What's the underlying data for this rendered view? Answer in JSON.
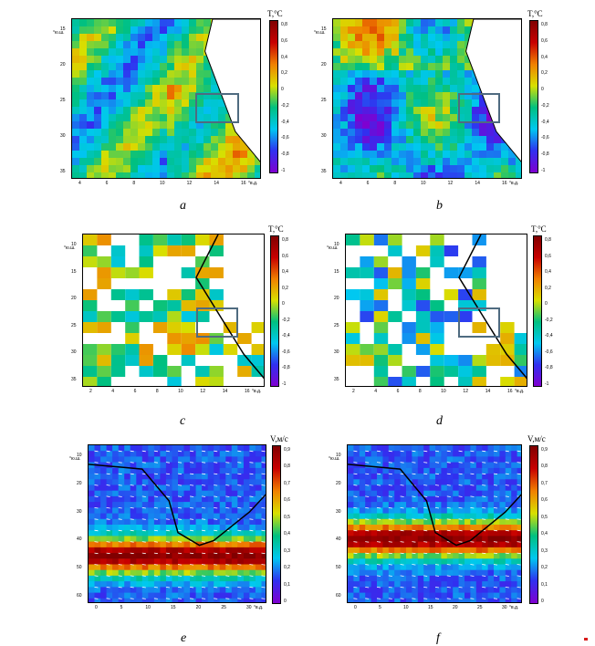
{
  "colors": {
    "scale_T": [
      "#8000d0",
      "#3030f0",
      "#00c8f0",
      "#00c080",
      "#d8e000",
      "#f08000",
      "#c80000",
      "#800000"
    ],
    "scale_V": [
      "#8000d0",
      "#3030f0",
      "#00c8f0",
      "#00c080",
      "#d8e000",
      "#f08000",
      "#c80000",
      "#800000"
    ],
    "box": "#4f6b80",
    "coast": "#000000"
  },
  "chart_data": [
    {
      "id": "a",
      "type": "heatmap",
      "label": "a",
      "colorbar_title": "T,°C",
      "colorbar_ticks": [
        "0,8",
        "0,6",
        "0,4",
        "0,2",
        "0",
        "-0,2",
        "-0,4",
        "-0,6",
        "-0,8",
        "-1"
      ],
      "colorbar_range": [
        -1,
        1
      ],
      "ylabel_unit": "°ю.ш.",
      "xlabel_unit": "°в.д.",
      "yticks": [
        "15",
        "20",
        "25",
        "30",
        "35"
      ],
      "xticks": [
        "4",
        "6",
        "8",
        "10",
        "12",
        "14",
        "16"
      ],
      "xlim": [
        2,
        18
      ],
      "ylim": [
        12,
        37
      ]
    },
    {
      "id": "b",
      "type": "heatmap",
      "label": "b",
      "colorbar_title": "T,°C",
      "colorbar_ticks": [
        "0,8",
        "0,6",
        "0,4",
        "0,2",
        "0",
        "-0,2",
        "-0,4",
        "-0,6",
        "-0,8",
        "-1"
      ],
      "colorbar_range": [
        -1,
        1
      ],
      "ylabel_unit": "°ю.ш.",
      "xlabel_unit": "°в.д.",
      "yticks": [
        "15",
        "20",
        "25",
        "30",
        "35"
      ],
      "xticks": [
        "4",
        "6",
        "8",
        "10",
        "12",
        "14",
        "16"
      ],
      "xlim": [
        2,
        18
      ],
      "ylim": [
        12,
        37
      ]
    },
    {
      "id": "c",
      "type": "heatmap",
      "label": "c",
      "colorbar_title": "T,°C",
      "colorbar_ticks": [
        "0,8",
        "0,6",
        "0,4",
        "0,2",
        "0",
        "-0,2",
        "-0,4",
        "-0,6",
        "-0,8",
        "-1"
      ],
      "colorbar_range": [
        -1,
        1
      ],
      "ylabel_unit": "°ю.ш.",
      "xlabel_unit": "°в.д.",
      "yticks": [
        "10",
        "15",
        "20",
        "25",
        "30",
        "35"
      ],
      "xticks": [
        "2",
        "4",
        "6",
        "8",
        "10",
        "12",
        "14",
        "16"
      ],
      "xlim": [
        2,
        18
      ],
      "ylim": [
        10,
        37
      ]
    },
    {
      "id": "d",
      "type": "heatmap",
      "label": "d",
      "colorbar_title": "T,°C",
      "colorbar_ticks": [
        "0,8",
        "0,6",
        "0,4",
        "0,2",
        "0",
        "-0,2",
        "-0,4",
        "-0,6",
        "-0,8",
        "-1"
      ],
      "colorbar_range": [
        -1,
        1
      ],
      "ylabel_unit": "°ю.ш.",
      "xlabel_unit": "°в.д.",
      "yticks": [
        "10",
        "15",
        "20",
        "25",
        "30",
        "35"
      ],
      "xticks": [
        "2",
        "4",
        "6",
        "8",
        "10",
        "12",
        "14",
        "16"
      ],
      "xlim": [
        2,
        18
      ],
      "ylim": [
        10,
        37
      ]
    },
    {
      "id": "e",
      "type": "heatmap",
      "label": "e",
      "colorbar_title": "V,м/с",
      "colorbar_ticks": [
        "0,9",
        "0,8",
        "0,7",
        "0,6",
        "0,5",
        "0,4",
        "0,3",
        "0,2",
        "0,1",
        "0"
      ],
      "colorbar_range": [
        0,
        1
      ],
      "ylabel_unit": "°ю.ш.",
      "xlabel_unit": "°в.д.",
      "yticks": [
        "10",
        "20",
        "30",
        "40",
        "50",
        "60"
      ],
      "xticks": [
        "0",
        "5",
        "10",
        "15",
        "20",
        "25",
        "30"
      ],
      "xlim": [
        0,
        30
      ],
      "ylim": [
        5,
        60
      ]
    },
    {
      "id": "f",
      "type": "heatmap",
      "label": "f",
      "colorbar_title": "V,м/с",
      "colorbar_ticks": [
        "0,9",
        "0,8",
        "0,7",
        "0,6",
        "0,5",
        "0,4",
        "0,3",
        "0,2",
        "0,1",
        "0"
      ],
      "colorbar_range": [
        0,
        1
      ],
      "ylabel_unit": "°ю.ш.",
      "xlabel_unit": "°в.д.",
      "yticks": [
        "10",
        "20",
        "30",
        "40",
        "50",
        "60"
      ],
      "xticks": [
        "0",
        "5",
        "10",
        "15",
        "20",
        "25",
        "30"
      ],
      "xlim": [
        0,
        30
      ],
      "ylim": [
        5,
        60
      ]
    }
  ]
}
